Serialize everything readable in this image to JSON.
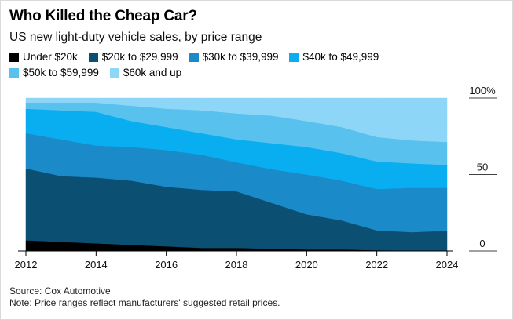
{
  "title": "Who Killed the Cheap Car?",
  "subtitle": "US new light-duty vehicle sales, by price range",
  "source": "Source: Cox Automotive",
  "note": "Note: Price ranges reflect manufacturers' suggested retail prices.",
  "chart_data": {
    "type": "area",
    "stacked": true,
    "x": [
      2012,
      2013,
      2014,
      2015,
      2016,
      2017,
      2018,
      2019,
      2020,
      2021,
      2022,
      2023,
      2024
    ],
    "x_ticks": [
      "2012",
      "2014",
      "2016",
      "2018",
      "2020",
      "2022",
      "2024"
    ],
    "y_ticks": [
      "0",
      "50",
      "100%"
    ],
    "ylim": [
      0,
      100
    ],
    "series": [
      {
        "name": "Under $20k",
        "color": "#000000",
        "values": [
          7,
          6,
          5,
          4,
          3,
          2,
          2,
          1.5,
          1,
          1,
          0.5,
          0.3,
          0.3
        ]
      },
      {
        "name": "$20k to $29,999",
        "color": "#0b4f73",
        "values": [
          47,
          43,
          43,
          42,
          39,
          38,
          37,
          30,
          23,
          19,
          13,
          12,
          13
        ]
      },
      {
        "name": "$30k to $39,999",
        "color": "#1b8ac9",
        "values": [
          23,
          24,
          21,
          22,
          24,
          23,
          19,
          22,
          26,
          26,
          27,
          29,
          28
        ]
      },
      {
        "name": "$40k to $49,999",
        "color": "#08aef0",
        "values": [
          16,
          19,
          22,
          17,
          15,
          14,
          15,
          17,
          18,
          18,
          18,
          16,
          15
        ]
      },
      {
        "name": "$50k to $59,999",
        "color": "#58c1ee",
        "values": [
          4,
          5,
          6,
          10,
          12,
          15,
          17,
          18,
          17,
          17,
          16,
          15,
          15
        ]
      },
      {
        "name": "$60k and up",
        "color": "#8ed6f8",
        "values": [
          3,
          3,
          3,
          5,
          7,
          8,
          10,
          11.5,
          15,
          19,
          25.5,
          27.7,
          28.7
        ]
      }
    ]
  }
}
